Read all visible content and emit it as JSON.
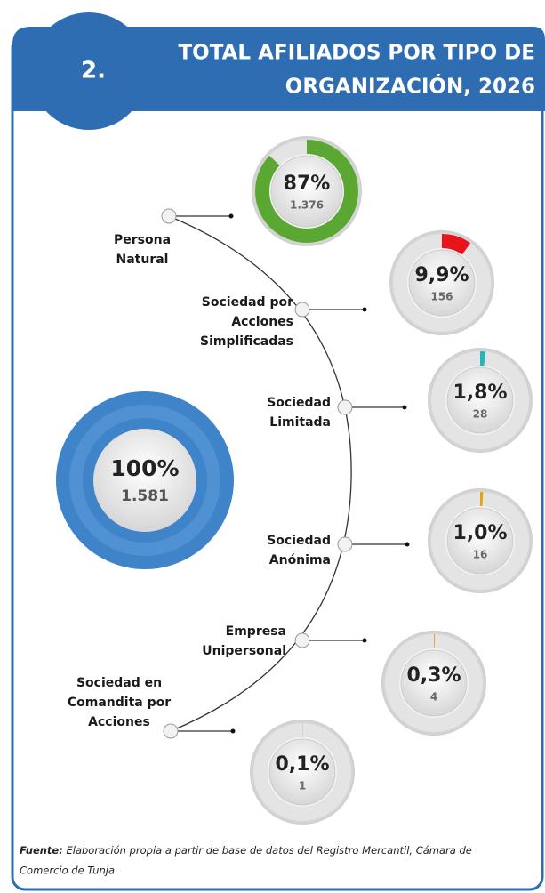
{
  "header": {
    "number": "2.",
    "title_lines": [
      "TOTAL AFILIADOS POR TIPO DE",
      "ORGANIZACIÓN, 2026"
    ]
  },
  "total": {
    "pct": 100,
    "pct_label": "100%",
    "count": 1581,
    "count_label": "1.581"
  },
  "items": [
    {
      "label": [
        "Persona",
        "Natural"
      ],
      "pct": 87,
      "pct_label": "87%",
      "count": 1376,
      "count_label": "1.376",
      "color": "#5aa832"
    },
    {
      "label": [
        "Sociedad por",
        "Acciones",
        "Simplificadas"
      ],
      "pct": 9.9,
      "pct_label": "9,9%",
      "count": 156,
      "color": "#e8141c"
    },
    {
      "label": [
        "Sociedad",
        "Limitada"
      ],
      "pct": 1.8,
      "pct_label": "1,8%",
      "count": 28,
      "color": "#2ab3b8"
    },
    {
      "label": [
        "Sociedad",
        "Anónima"
      ],
      "pct": 1.0,
      "pct_label": "1,0%",
      "count": 16,
      "color": "#e6a117"
    },
    {
      "label": [
        "Empresa",
        "Unipersonal"
      ],
      "pct": 0.3,
      "pct_label": "0,3%",
      "count": 4,
      "color": "#e6a117"
    },
    {
      "label": [
        "Sociedad en",
        "Comandita por",
        "Acciones"
      ],
      "pct": 0.1,
      "pct_label": "0,1%",
      "count": 1,
      "color": "#e6a117"
    }
  ],
  "footer": {
    "source_label": "Fuente:",
    "source_text": "Elaboración propia a partir de base de datos del Registro Mercantil, Cámara de",
    "source_text_2": "Comercio de Tunja."
  }
}
